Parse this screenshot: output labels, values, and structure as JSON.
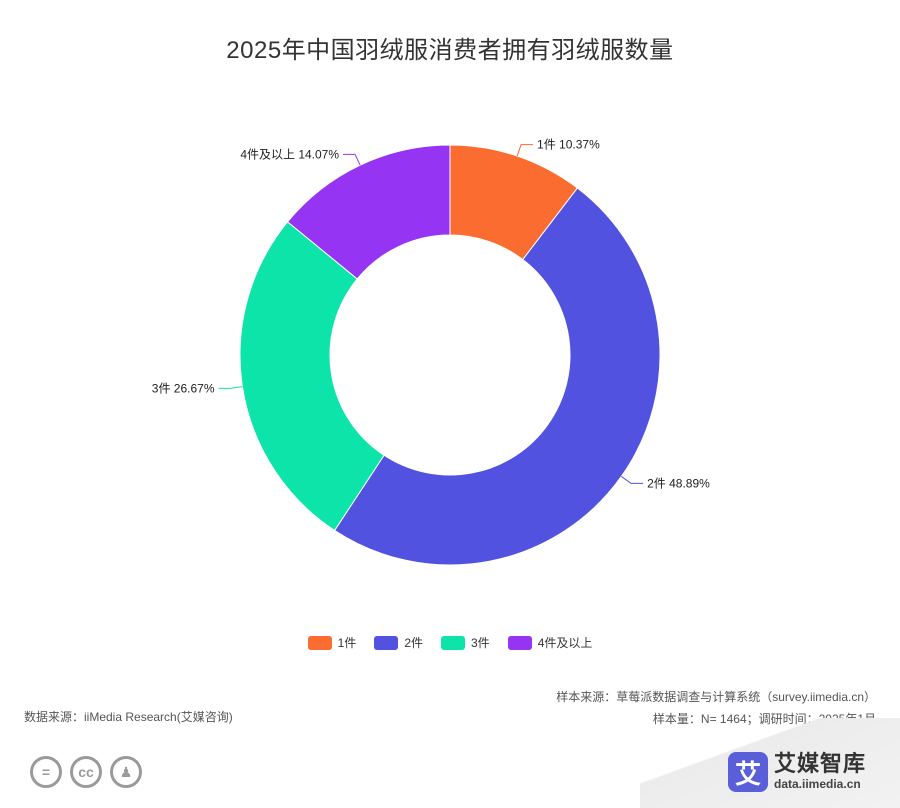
{
  "title": "2025年中国羽绒服消费者拥有羽绒服数量",
  "chart_data": {
    "type": "pie",
    "donut": true,
    "title": "2025年中国羽绒服消费者拥有羽绒服数量",
    "legend_position": "bottom",
    "slices": [
      {
        "name": "1件",
        "value": 10.37,
        "label": "1件 10.37%",
        "color": "#fb6c30"
      },
      {
        "name": "2件",
        "value": 48.89,
        "label": "2件 48.89%",
        "color": "#5152e0"
      },
      {
        "name": "3件",
        "value": 26.67,
        "label": "3件 26.67%",
        "color": "#0de4a9"
      },
      {
        "name": "4件及以上",
        "value": 14.07,
        "label": "4件及以上 14.07%",
        "color": "#9534f3"
      }
    ]
  },
  "footer": {
    "data_source": "数据来源：iiMedia Research(艾媒咨询)",
    "sample_source": "样本来源：草莓派数据调查与计算系统（survey.iimedia.cn）",
    "sample_size": "样本量：N= 1464；调研时间：2025年1月"
  },
  "license": {
    "icons": [
      "equal-icon",
      "cc-icon",
      "person-icon"
    ],
    "glyphs": [
      "=",
      "cc",
      "♟"
    ]
  },
  "brand": {
    "mark": "艾",
    "name": "艾媒智库",
    "url": "data.iimedia.cn"
  }
}
